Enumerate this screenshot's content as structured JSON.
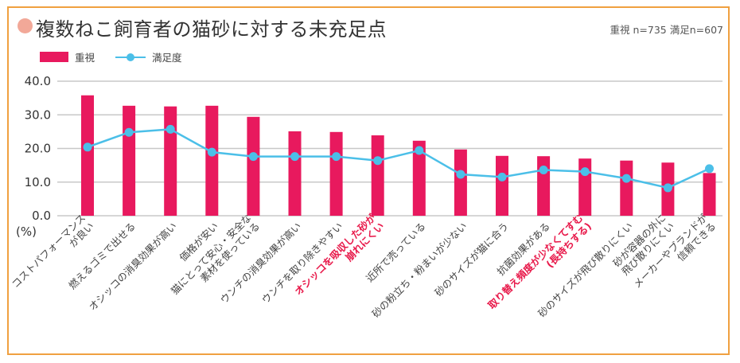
{
  "title": "複数ねこ飼育者の猫砂に対する未充足点",
  "sample_note": "重視 n=735 満足n=607",
  "colors": {
    "bar": "#e8195e",
    "line": "#4bbfe8",
    "highlight_label": "#e8194a",
    "frame": "#f0a040",
    "title_dot": "#f2a898"
  },
  "chart_data": {
    "type": "bar",
    "title": "複数ねこ飼育者の猫砂に対する未充足点",
    "ylabel": "(%)",
    "ylim": [
      0,
      40
    ],
    "yticks": [
      "0.0",
      "10.0",
      "20.0",
      "30.0",
      "40.0"
    ],
    "grid": true,
    "legend_position": "top-left",
    "legend": [
      "重視",
      "満足度"
    ],
    "categories": [
      {
        "lines": [
          "コストパフォーマンス",
          "が良い"
        ],
        "highlight": false
      },
      {
        "lines": [
          "燃えるゴミで出せる"
        ],
        "highlight": false
      },
      {
        "lines": [
          "オシッコの消臭効果が高い"
        ],
        "highlight": false
      },
      {
        "lines": [
          "価格が安い"
        ],
        "highlight": false
      },
      {
        "lines": [
          "猫にとって安心・安全な",
          "素材を使っている"
        ],
        "highlight": false
      },
      {
        "lines": [
          "ウンチの消臭効果が高い"
        ],
        "highlight": false
      },
      {
        "lines": [
          "ウンチを取り除きやすい"
        ],
        "highlight": false
      },
      {
        "lines": [
          "オシッコを吸収した砂が",
          "崩れにくい"
        ],
        "highlight": true
      },
      {
        "lines": [
          "近所で売っている"
        ],
        "highlight": false
      },
      {
        "lines": [
          "砂の粉立ち・粉まいが少ない"
        ],
        "highlight": false
      },
      {
        "lines": [
          "砂のサイズが猫に合う"
        ],
        "highlight": false
      },
      {
        "lines": [
          "抗菌効果がある"
        ],
        "highlight": false
      },
      {
        "lines": [
          "取り替え頻度が少なくてすむ",
          "(長持ちする)"
        ],
        "highlight": true
      },
      {
        "lines": [
          "砂のサイズが飛び散りにくい"
        ],
        "highlight": false
      },
      {
        "lines": [
          "砂が容器の外に",
          "飛び散りにくい"
        ],
        "highlight": false
      },
      {
        "lines": [
          "メーカーやブランドが",
          "信頼できる"
        ],
        "highlight": false
      }
    ],
    "series": [
      {
        "name": "重視",
        "type": "bar",
        "values": [
          35.8,
          32.7,
          32.5,
          32.7,
          29.4,
          25.1,
          24.9,
          23.9,
          22.3,
          19.7,
          17.8,
          17.7,
          17.0,
          16.4,
          15.8,
          12.7
        ]
      },
      {
        "name": "満足度",
        "type": "line",
        "values": [
          20.4,
          24.8,
          25.7,
          18.9,
          17.6,
          17.6,
          17.6,
          16.4,
          19.4,
          12.3,
          11.5,
          13.6,
          13.1,
          11.1,
          8.3,
          14.0
        ]
      }
    ]
  }
}
